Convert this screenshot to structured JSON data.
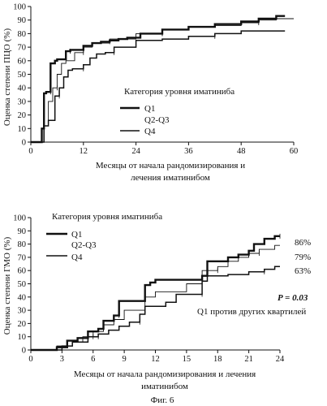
{
  "figure_caption": "Фиг. 6",
  "chart_data": [
    {
      "type": "line",
      "id": "top",
      "ylabel": "Оценка степени ПЦО (%)",
      "xlabel_lines": [
        "Месяцы от начала рандомизирования и",
        "лечения иматинибом"
      ],
      "xlim": [
        0,
        60
      ],
      "ylim": [
        0,
        100
      ],
      "xticks": [
        0,
        12,
        24,
        36,
        48,
        60
      ],
      "yticks": [
        0,
        10,
        20,
        30,
        40,
        50,
        60,
        70,
        80,
        90,
        100
      ],
      "legend_title": "Категория уровня иматиниба",
      "legend_placement": "center",
      "grid": false,
      "series": [
        {
          "name": "Q1",
          "style": "thick",
          "x": [
            0,
            2.5,
            2.5,
            3,
            3,
            3.5,
            3.5,
            4.5,
            4.5,
            5.5,
            5.5,
            6,
            6,
            8,
            8,
            9,
            9,
            12,
            12,
            14,
            14,
            16,
            16,
            18,
            18,
            20,
            20,
            22,
            22,
            25,
            25,
            30,
            30,
            36,
            36,
            42,
            42,
            48,
            48,
            52,
            52,
            56,
            56,
            58
          ],
          "y": [
            0,
            0,
            10,
            10,
            36,
            36,
            37,
            37,
            58,
            58,
            60,
            60,
            61,
            61,
            67,
            67,
            68,
            68,
            71,
            71,
            73,
            73,
            74,
            74,
            75,
            75,
            76,
            76,
            77,
            77,
            80,
            80,
            83,
            83,
            85,
            85,
            87,
            87,
            89,
            89,
            91,
            91,
            93,
            93
          ]
        },
        {
          "name": "Q2-Q3",
          "style": "thin",
          "x": [
            0,
            3,
            3,
            4,
            4,
            5,
            5,
            6,
            6,
            7,
            7,
            8,
            8,
            10,
            10,
            12,
            12,
            14,
            14,
            18,
            18,
            24,
            24,
            30,
            30,
            36,
            36,
            42,
            42,
            48,
            48,
            52,
            52,
            56,
            56,
            60
          ],
          "y": [
            0,
            0,
            12,
            12,
            30,
            30,
            40,
            40,
            50,
            50,
            58,
            58,
            60,
            60,
            66,
            66,
            70,
            70,
            73,
            73,
            76,
            76,
            80,
            80,
            83,
            83,
            85,
            85,
            86,
            86,
            88,
            88,
            90,
            90,
            91,
            91
          ]
        },
        {
          "name": "Q4",
          "style": "medium",
          "x": [
            0,
            3,
            3,
            4,
            4,
            5.5,
            5.5,
            6.5,
            6.5,
            7.5,
            7.5,
            8.5,
            8.5,
            9.5,
            9.5,
            12,
            12,
            13.5,
            13.5,
            15,
            15,
            17,
            17,
            19,
            19,
            24,
            24,
            30,
            30,
            36,
            36,
            42,
            42,
            48,
            48,
            58
          ],
          "y": [
            0,
            0,
            12,
            12,
            16,
            16,
            34,
            34,
            40,
            40,
            48,
            48,
            53,
            53,
            54,
            54,
            57,
            57,
            62,
            62,
            65,
            65,
            66,
            66,
            70,
            70,
            75,
            75,
            76,
            76,
            78,
            78,
            80,
            80,
            82,
            82
          ]
        }
      ]
    },
    {
      "type": "line",
      "id": "bottom",
      "ylabel": "Оценка степени ГМО (%)",
      "xlabel_lines": [
        "Месяцы от начала рандомизирования и лечения",
        "иматинибом"
      ],
      "xlim": [
        0,
        24
      ],
      "ylim": [
        0,
        100
      ],
      "xticks": [
        0,
        3,
        6,
        9,
        12,
        15,
        18,
        21,
        24
      ],
      "yticks": [
        0,
        10,
        20,
        30,
        40,
        50,
        60,
        70,
        80,
        90,
        100
      ],
      "legend_title": "Категория уровня иматиниба",
      "legend_placement": "top-left",
      "grid": false,
      "end_labels": [
        "86%",
        "79%",
        "63%"
      ],
      "annotation_p": "P = 0.03",
      "annotation_note": "Q1 против других квартилей",
      "series": [
        {
          "name": "Q1",
          "style": "thick",
          "x": [
            0,
            2.5,
            2.5,
            3.5,
            3.5,
            4.5,
            4.5,
            5.5,
            5.5,
            6.5,
            6.5,
            7,
            7,
            8,
            8,
            8.5,
            8.5,
            11,
            11,
            11.5,
            11.5,
            12,
            12,
            16.5,
            16.5,
            17,
            17,
            19,
            19,
            20,
            20,
            21,
            21,
            21.5,
            21.5,
            22.5,
            22.5,
            23.5,
            23.5,
            24
          ],
          "y": [
            0,
            0,
            2,
            2,
            7,
            7,
            9,
            9,
            14,
            14,
            16,
            16,
            22,
            22,
            26,
            26,
            37,
            37,
            49,
            49,
            51,
            51,
            53,
            53,
            56,
            56,
            67,
            67,
            70,
            70,
            72,
            72,
            75,
            75,
            80,
            80,
            84,
            84,
            86,
            86
          ]
        },
        {
          "name": "Q2-Q3",
          "style": "thin",
          "x": [
            0,
            2.5,
            2.5,
            4,
            4,
            5,
            5,
            6,
            6,
            7,
            7,
            8,
            8,
            9,
            9,
            11,
            11,
            12,
            12,
            15,
            15,
            16.5,
            16.5,
            18,
            18,
            19,
            19,
            20,
            20,
            21,
            21,
            22,
            22,
            23.5,
            23.5,
            24
          ],
          "y": [
            0,
            0,
            3,
            3,
            6,
            6,
            10,
            10,
            14,
            14,
            19,
            19,
            23,
            23,
            30,
            30,
            40,
            40,
            44,
            44,
            50,
            50,
            60,
            60,
            63,
            63,
            67,
            67,
            70,
            70,
            73,
            73,
            76,
            76,
            79,
            79
          ]
        },
        {
          "name": "Q4",
          "style": "medium",
          "x": [
            0,
            3,
            3,
            4,
            4,
            5.5,
            5.5,
            6.5,
            6.5,
            7.5,
            7.5,
            8.5,
            8.5,
            9.5,
            9.5,
            10.5,
            10.5,
            11,
            11,
            13,
            13,
            14,
            14,
            16.5,
            16.5,
            17,
            17,
            19,
            19,
            21,
            21,
            22.5,
            22.5,
            23.5,
            23.5,
            24
          ],
          "y": [
            0,
            0,
            3,
            3,
            6,
            6,
            10,
            10,
            12,
            12,
            15,
            15,
            18,
            18,
            21,
            21,
            27,
            27,
            33,
            33,
            36,
            36,
            42,
            42,
            52,
            52,
            56,
            56,
            57,
            57,
            59,
            59,
            61,
            61,
            63,
            63
          ]
        }
      ]
    }
  ]
}
